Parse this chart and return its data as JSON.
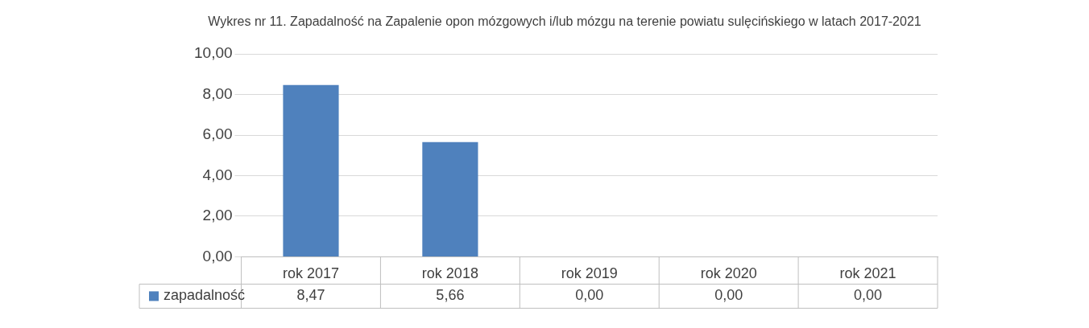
{
  "chart_data": {
    "type": "bar",
    "title": "Wykres nr 11. Zapadalność na Zapalenie opon mózgowych i/lub mózgu na terenie powiatu sulęcińskiego w latach 2017-2021",
    "categories": [
      "rok 2017",
      "rok 2018",
      "rok 2019",
      "rok 2020",
      "rok 2021"
    ],
    "series": [
      {
        "name": "zapadalność",
        "color": "#4f81bd",
        "values": [
          8.47,
          5.66,
          0,
          0,
          0
        ],
        "value_labels": [
          "8,47",
          "5,66",
          "0,00",
          "0,00",
          "0,00"
        ]
      }
    ],
    "ylim": [
      0,
      10
    ],
    "yticks": [
      {
        "value": 0,
        "label": "0,00"
      },
      {
        "value": 2,
        "label": "2,00"
      },
      {
        "value": 4,
        "label": "4,00"
      },
      {
        "value": 6,
        "label": "6,00"
      },
      {
        "value": 8,
        "label": "8,00"
      },
      {
        "value": 10,
        "label": "10,00"
      }
    ],
    "grid": "y",
    "legend": "bottom"
  }
}
